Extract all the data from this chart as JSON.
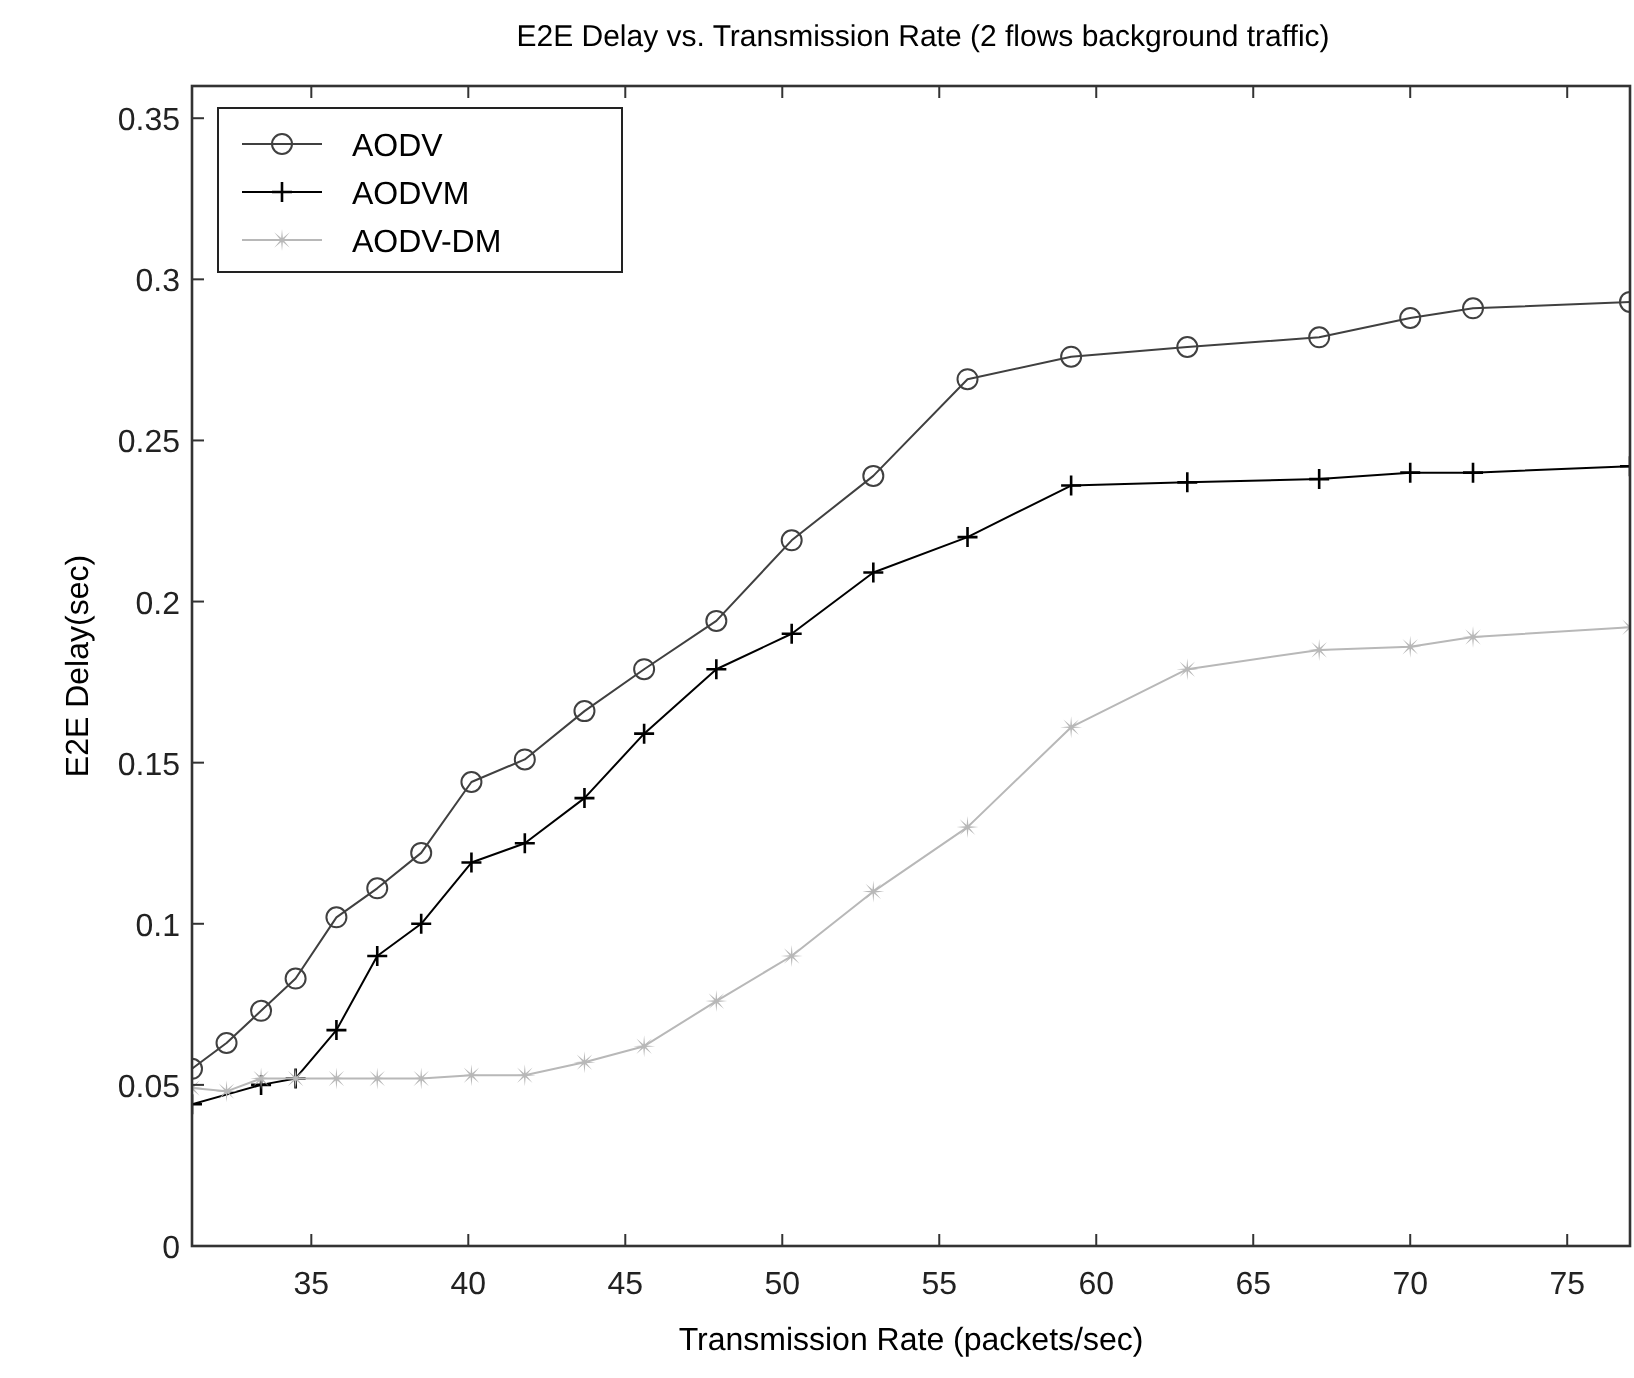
{
  "chart_data": {
    "type": "line",
    "title": "E2E Delay vs. Transmission Rate (2 flows background traffic)",
    "xlabel": "Transmission Rate (packets/sec)",
    "ylabel": "E2E Delay(sec)",
    "xlim": [
      31.2,
      77
    ],
    "ylim": [
      0,
      0.36
    ],
    "xticks": [
      35,
      40,
      45,
      50,
      55,
      60,
      65,
      70,
      75
    ],
    "yticks": [
      {
        "value": 0,
        "label": "0"
      },
      0.05,
      0.1,
      0.15,
      0.2,
      0.25,
      0.3,
      0.35
    ],
    "grid": false,
    "legend": "top left",
    "series": [
      {
        "name": "AODV",
        "color": "#404040",
        "marker": "circle",
        "x": [
          31.2,
          32.3,
          33.4,
          34.5,
          35.8,
          37.1,
          38.5,
          40.1,
          41.8,
          43.7,
          45.6,
          47.9,
          50.3,
          52.9,
          55.9,
          59.2,
          62.9,
          67.1,
          70.0,
          72.0,
          77
        ],
        "values": [
          0.055,
          0.063,
          0.073,
          0.083,
          0.102,
          0.111,
          0.122,
          0.144,
          0.151,
          0.166,
          0.179,
          0.194,
          0.219,
          0.239,
          0.269,
          0.276,
          0.279,
          0.282,
          0.288,
          0.291,
          0.293
        ]
      },
      {
        "name": "AODVM",
        "color": "#000000",
        "marker": "cross",
        "x": [
          31.2,
          33.4,
          34.5,
          35.8,
          37.1,
          38.5,
          40.1,
          41.8,
          43.7,
          45.6,
          47.9,
          50.3,
          52.9,
          55.9,
          59.2,
          62.9,
          67.1,
          70.0,
          72.0,
          77
        ],
        "values": [
          0.044,
          0.05,
          0.052,
          0.067,
          0.09,
          0.1,
          0.119,
          0.125,
          0.139,
          0.159,
          0.179,
          0.19,
          0.209,
          0.22,
          0.236,
          0.237,
          0.238,
          0.24,
          0.24,
          0.242
        ]
      },
      {
        "name": "AODV-DM",
        "color": "#b8b8b8",
        "marker": "star",
        "x": [
          31.2,
          32.3,
          33.4,
          34.5,
          35.8,
          37.1,
          38.5,
          40.1,
          41.8,
          43.7,
          45.6,
          47.9,
          50.3,
          52.9,
          55.9,
          59.2,
          62.9,
          67.1,
          70.0,
          72.0,
          77
        ],
        "values": [
          0.049,
          0.048,
          0.052,
          0.052,
          0.052,
          0.052,
          0.052,
          0.053,
          0.053,
          0.057,
          0.062,
          0.076,
          0.09,
          0.11,
          0.13,
          0.161,
          0.179,
          0.185,
          0.186,
          0.189,
          0.192
        ]
      }
    ]
  }
}
